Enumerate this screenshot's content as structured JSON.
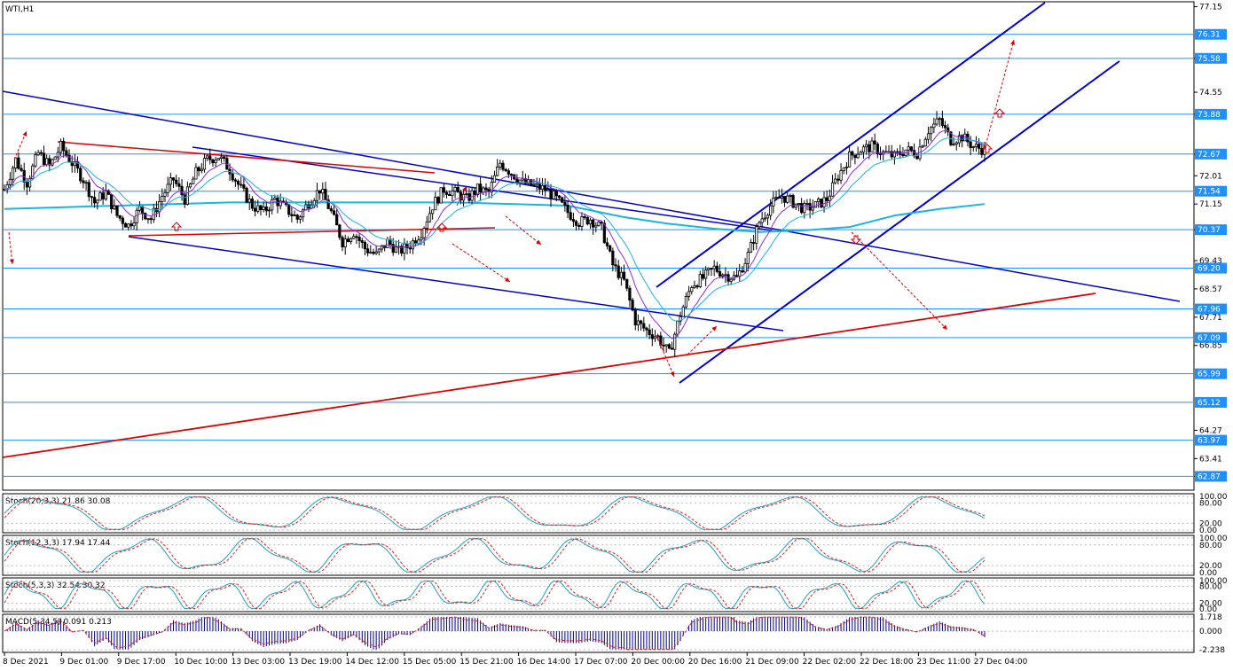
{
  "symbol_title": "WTI,H1",
  "colors": {
    "background": "#ffffff",
    "candle": "#000000",
    "level_line": "#1e90ff",
    "level_tag_bg": "#1e90ff",
    "channel_blue": "#0000cd",
    "trend_red": "#e00000",
    "ma_cyan": "#19b4e0",
    "ma_purple": "#8a2be2",
    "stoch_main": "#20a0c0",
    "stoch_signal": "#e02020",
    "macd_hist": "#00008b",
    "arrow_red": "#e00000"
  },
  "chart_data": {
    "type": "candlestick",
    "symbol": "WTI",
    "timeframe": "H1",
    "ylim": [
      62.45,
      77.3
    ],
    "price_axis_ticks": [
      "77.15",
      "75.58",
      "74.55",
      "73.88",
      "72.67",
      "72.01",
      "71.15",
      "70.37",
      "69.43",
      "68.57",
      "67.71",
      "66.85",
      "64.27",
      "63.41",
      "62.87"
    ],
    "horizontal_levels": [
      "76.31",
      "75.58",
      "73.88",
      "72.67",
      "71.54",
      "70.37",
      "69.20",
      "67.96",
      "67.09",
      "65.99",
      "65.12",
      "63.97",
      "62.87"
    ],
    "x_ticks": [
      "8 Dec 2021",
      "9 Dec 01:00",
      "9 Dec 17:00",
      "10 Dec 10:00",
      "13 Dec 03:00",
      "13 Dec 19:00",
      "14 Dec 12:00",
      "15 Dec 05:00",
      "15 Dec 21:00",
      "16 Dec 14:00",
      "17 Dec 07:00",
      "20 Dec 00:00",
      "20 Dec 16:00",
      "21 Dec 09:00",
      "22 Dec 02:00",
      "22 Dec 18:00",
      "23 Dec 11:00",
      "27 Dec 04:00"
    ],
    "price_path": [
      [
        0,
        71.6
      ],
      [
        2,
        72.5
      ],
      [
        4,
        71.8
      ],
      [
        6,
        72.7
      ],
      [
        8,
        72.3
      ],
      [
        10,
        72.9
      ],
      [
        12,
        72.4
      ],
      [
        14,
        71.9
      ],
      [
        16,
        71.2
      ],
      [
        18,
        71.5
      ],
      [
        20,
        70.8
      ],
      [
        22,
        70.5
      ],
      [
        24,
        71.0
      ],
      [
        26,
        70.7
      ],
      [
        28,
        71.4
      ],
      [
        30,
        71.9
      ],
      [
        32,
        71.3
      ],
      [
        34,
        72.1
      ],
      [
        36,
        72.5
      ],
      [
        38,
        72.6
      ],
      [
        40,
        72.2
      ],
      [
        42,
        71.6
      ],
      [
        44,
        71.1
      ],
      [
        46,
        70.9
      ],
      [
        48,
        71.3
      ],
      [
        50,
        71.0
      ],
      [
        52,
        70.7
      ],
      [
        54,
        71.2
      ],
      [
        56,
        71.6
      ],
      [
        58,
        70.9
      ],
      [
        60,
        70.0
      ],
      [
        62,
        70.3
      ],
      [
        64,
        69.8
      ],
      [
        66,
        69.6
      ],
      [
        68,
        70.0
      ],
      [
        70,
        69.7
      ],
      [
        72,
        69.9
      ],
      [
        74,
        70.3
      ],
      [
        76,
        71.1
      ],
      [
        78,
        71.6
      ],
      [
        80,
        71.5
      ],
      [
        82,
        71.3
      ],
      [
        84,
        71.6
      ],
      [
        86,
        71.5
      ],
      [
        88,
        72.4
      ],
      [
        90,
        72.1
      ],
      [
        92,
        71.8
      ],
      [
        94,
        71.7
      ],
      [
        96,
        71.6
      ],
      [
        98,
        71.3
      ],
      [
        100,
        70.9
      ],
      [
        102,
        70.6
      ],
      [
        104,
        70.7
      ],
      [
        106,
        70.4
      ],
      [
        108,
        69.3
      ],
      [
        110,
        68.8
      ],
      [
        112,
        67.6
      ],
      [
        114,
        67.3
      ],
      [
        116,
        67.1
      ],
      [
        118,
        66.6
      ],
      [
        120,
        67.8
      ],
      [
        122,
        68.7
      ],
      [
        124,
        68.9
      ],
      [
        126,
        69.2
      ],
      [
        128,
        69.0
      ],
      [
        130,
        68.9
      ],
      [
        132,
        69.6
      ],
      [
        134,
        70.6
      ],
      [
        136,
        71.1
      ],
      [
        138,
        71.4
      ],
      [
        140,
        71.2
      ],
      [
        142,
        71.0
      ],
      [
        144,
        71.1
      ],
      [
        146,
        71.3
      ],
      [
        148,
        72.0
      ],
      [
        150,
        72.6
      ],
      [
        152,
        72.8
      ],
      [
        154,
        72.9
      ],
      [
        156,
        72.7
      ],
      [
        158,
        72.6
      ],
      [
        160,
        72.8
      ],
      [
        162,
        72.7
      ],
      [
        164,
        73.4
      ],
      [
        166,
        73.7
      ],
      [
        168,
        73.1
      ],
      [
        170,
        73.2
      ],
      [
        172,
        72.9
      ],
      [
        174,
        72.8
      ]
    ],
    "moving_average_slow": [
      [
        0,
        71.0
      ],
      [
        20,
        71.1
      ],
      [
        40,
        71.2
      ],
      [
        60,
        71.2
      ],
      [
        80,
        71.2
      ],
      [
        100,
        71.1
      ],
      [
        110,
        70.75
      ],
      [
        118,
        70.55
      ],
      [
        126,
        70.4
      ],
      [
        134,
        70.3
      ],
      [
        142,
        70.35
      ],
      [
        150,
        70.45
      ],
      [
        158,
        70.8
      ],
      [
        166,
        71.0
      ],
      [
        174,
        71.15
      ]
    ],
    "indicators": [
      {
        "name": "Stoch(20,3,3)",
        "values": [
          "21.86",
          "30.08"
        ],
        "ticks": [
          "100.00",
          "80.00",
          "20.00",
          "0.00"
        ]
      },
      {
        "name": "Stoch(12,3,3)",
        "values": [
          "17.94",
          "17.44"
        ],
        "ticks": [
          "100.00",
          "80.00",
          "20.00",
          "0.00"
        ]
      },
      {
        "name": "Stoch(5,3,3)",
        "values": [
          "32.54",
          "30.32"
        ],
        "ticks": [
          "100.00",
          "80.00",
          "20.00",
          "0.00"
        ]
      },
      {
        "name": "MACD(5,34,5)",
        "values": [
          "0.091",
          "0.213"
        ],
        "ticks": [
          "1.718",
          "0.000",
          "-2.238"
        ]
      }
    ]
  }
}
